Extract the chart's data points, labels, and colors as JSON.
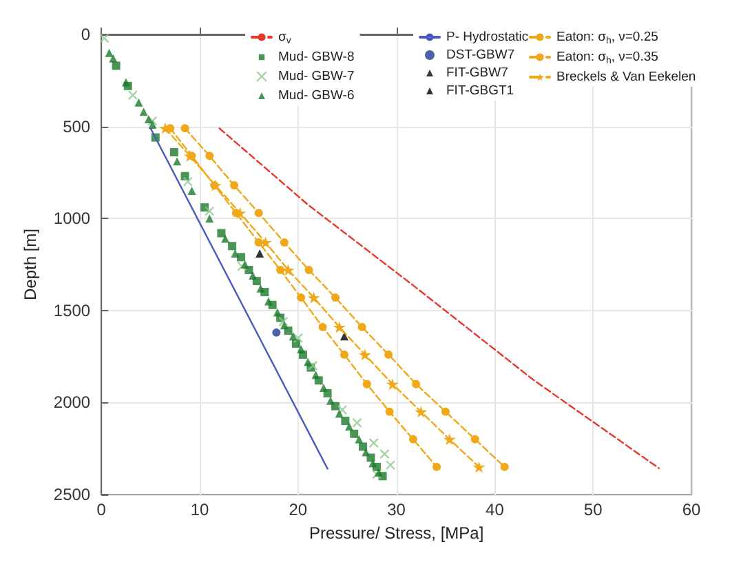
{
  "chart_data": {
    "type": "scatter",
    "xlabel": "Pressure/ Stress, [MPa]",
    "ylabel": "Depth [m]",
    "xlim": [
      0,
      60
    ],
    "xticks": [
      0,
      10,
      20,
      30,
      40,
      50,
      60
    ],
    "ylim": [
      2500,
      0
    ],
    "yticks": [
      0,
      500,
      1000,
      1500,
      2000,
      2500
    ],
    "grid": true,
    "legend": "top right",
    "series": [
      {
        "name": "σ$_{v}$",
        "type": "line",
        "color": "#e8372a",
        "marker": "none",
        "line_style": "dashed",
        "x": [
          12,
          21,
          31.5,
          44,
          56.7
        ],
        "values": [
          510,
          925,
          1355,
          1880,
          2357
        ]
      },
      {
        "name": "Mud- GBW-8",
        "color": "#1a7a2a",
        "marker": "square",
        "x": [
          1.5,
          2.7,
          5.5,
          7.4,
          8.5,
          10.5,
          12.2,
          13.3,
          14.2,
          15.0,
          15.8,
          16.6,
          17.4,
          18.2,
          19.0,
          19.8,
          20.5,
          21.3,
          22.1,
          23.0,
          23.8,
          24.8,
          25.7,
          26.6,
          27.4,
          28.0,
          28.6
        ],
        "values": [
          170,
          280,
          560,
          640,
          770,
          940,
          1080,
          1150,
          1210,
          1280,
          1340,
          1400,
          1470,
          1540,
          1610,
          1680,
          1740,
          1810,
          1880,
          1950,
          2020,
          2100,
          2170,
          2240,
          2300,
          2350,
          2400
        ]
      },
      {
        "name": "Mud- GBW-7",
        "color": "#8cc98c",
        "marker": "cross",
        "x": [
          0.3,
          3.2,
          5.2,
          8.8,
          11.0,
          14.3,
          18.5,
          20.0,
          21.5,
          24.5,
          26.0,
          27.7,
          28.8,
          29.4,
          28.0
        ],
        "values": [
          20,
          330,
          470,
          800,
          960,
          1260,
          1560,
          1650,
          1800,
          2040,
          2110,
          2220,
          2280,
          2340,
          2390
        ]
      },
      {
        "name": "Mud- GBW-6",
        "color": "#1a7a2a",
        "marker": "triangle",
        "x": [
          0.8,
          1.2,
          2.5,
          3.8,
          4.3,
          4.8,
          5.2,
          7.7,
          9.2,
          11.0,
          12.6,
          13.6,
          14.6,
          15.4,
          16.2,
          17.0,
          17.9,
          18.6,
          19.5,
          20.3,
          21.0,
          21.8,
          22.6,
          23.3,
          24.2,
          25.2,
          26.2,
          26.9,
          27.6,
          28.2
        ],
        "values": [
          100,
          130,
          260,
          370,
          420,
          460,
          490,
          690,
          850,
          1000,
          1110,
          1190,
          1250,
          1310,
          1380,
          1450,
          1510,
          1580,
          1640,
          1710,
          1780,
          1850,
          1920,
          1990,
          2060,
          2130,
          2200,
          2270,
          2330,
          2380
        ]
      },
      {
        "name": "P- Hydrostatic",
        "type": "line",
        "color": "#4a5bbf",
        "marker": "none",
        "line_style": "solid",
        "x": [
          5,
          23
        ],
        "values": [
          510,
          2360
        ]
      },
      {
        "name": "DST-GBW7",
        "color": "#1f3a9a",
        "marker": "circle",
        "x": [
          17.8
        ],
        "values": [
          1620
        ]
      },
      {
        "name": "FIT-GBW7",
        "color": "#000000",
        "marker": "triangle",
        "x": [
          16.1
        ],
        "values": [
          1190
        ]
      },
      {
        "name": "FIT-GBGT1",
        "color": "#000000",
        "marker": "triangle",
        "x": [
          24.7
        ],
        "values": [
          1640
        ]
      },
      {
        "name": "Eaton: σ$_{h}$, ν=0.25",
        "type": "line",
        "color": "#f0a818",
        "marker": "circle",
        "line_style": "dashed",
        "x": [
          7.0,
          9.2,
          11.5,
          13.7,
          16.0,
          18.2,
          20.3,
          22.5,
          24.7,
          27.0,
          29.3,
          31.7,
          34.1
        ],
        "values": [
          510,
          660,
          820,
          970,
          1130,
          1280,
          1430,
          1590,
          1740,
          1900,
          2050,
          2200,
          2350
        ]
      },
      {
        "name": "Eaton: σ$_{h}$, ν=0.35",
        "type": "line",
        "color": "#f0a818",
        "marker": "circle",
        "line_style": "dashed",
        "x": [
          8.5,
          11.0,
          13.5,
          16.0,
          18.6,
          21.1,
          23.8,
          26.5,
          29.2,
          32.0,
          35.0,
          38.0,
          41.0
        ],
        "values": [
          510,
          660,
          820,
          970,
          1130,
          1280,
          1430,
          1590,
          1740,
          1900,
          2050,
          2200,
          2350
        ]
      },
      {
        "name": "Breckels & Van Eekelen",
        "type": "line",
        "color": "#f0a818",
        "marker": "star",
        "line_style": "dashed",
        "x": [
          6.5,
          9.0,
          11.6,
          14.1,
          16.7,
          19.0,
          21.6,
          24.2,
          26.8,
          29.6,
          32.5,
          35.4,
          38.4
        ],
        "values": [
          510,
          660,
          820,
          970,
          1130,
          1280,
          1430,
          1590,
          1740,
          1900,
          2050,
          2200,
          2350
        ]
      }
    ]
  }
}
